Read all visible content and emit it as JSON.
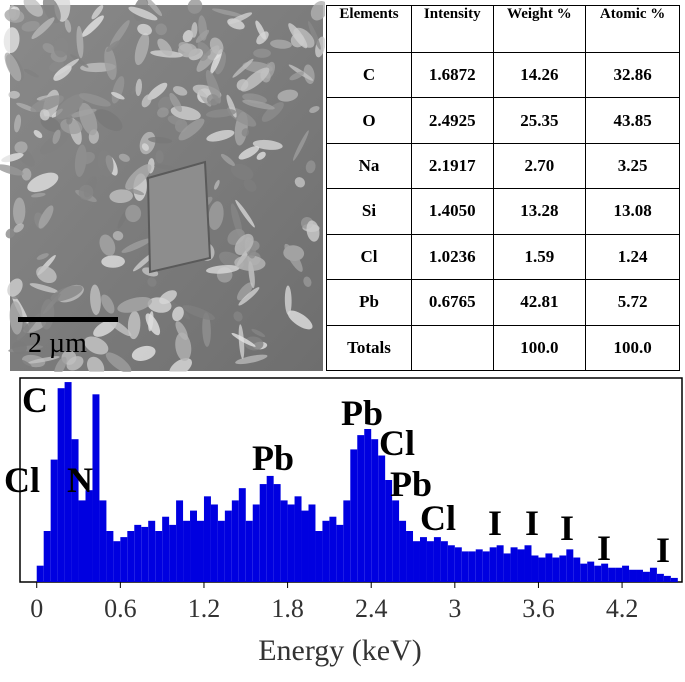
{
  "image": {
    "scale_label": "2 µm"
  },
  "table": {
    "header": [
      "Elements",
      "Intensity",
      "Weight %",
      "Atomic %"
    ],
    "rows": [
      [
        "C",
        "1.6872",
        "14.26",
        "32.86"
      ],
      [
        "O",
        "2.4925",
        "25.35",
        "43.85"
      ],
      [
        "Na",
        "2.1917",
        "2.70",
        "3.25"
      ],
      [
        "Si",
        "1.4050",
        "13.28",
        "13.08"
      ],
      [
        "Cl",
        "1.0236",
        "1.59",
        "1.24"
      ],
      [
        "Pb",
        "0.6765",
        "42.81",
        "5.72"
      ],
      [
        "Totals",
        "",
        "100.0",
        "100.0"
      ]
    ]
  },
  "chart_data": {
    "type": "histogram",
    "x_label": "Energy (keV)",
    "color": "#0000e0",
    "bins": [
      0,
      0.05,
      0.1,
      0.15,
      0.2,
      0.25,
      0.3,
      0.35,
      0.4,
      0.45,
      0.5,
      0.55,
      0.6,
      0.65,
      0.7,
      0.75,
      0.8,
      0.85,
      0.9,
      0.95,
      1,
      1.05,
      1.1,
      1.15,
      1.2,
      1.25,
      1.3,
      1.35,
      1.4,
      1.45,
      1.5,
      1.55,
      1.6,
      1.65,
      1.7,
      1.75,
      1.8,
      1.85,
      1.9,
      1.95,
      2,
      2.05,
      2.1,
      2.15,
      2.2,
      2.25,
      2.3,
      2.35,
      2.4,
      2.45,
      2.5,
      2.55,
      2.6,
      2.65,
      2.7,
      2.75,
      2.8,
      2.85,
      2.9,
      2.95,
      3,
      3.05,
      3.1,
      3.15,
      3.2,
      3.25,
      3.3,
      3.35,
      3.4,
      3.45,
      3.5,
      3.55,
      3.6,
      3.65,
      3.7,
      3.75,
      3.8,
      3.85,
      3.9,
      3.95,
      4,
      4.05,
      4.1,
      4.15,
      4.2,
      4.25,
      4.3,
      4.35,
      4.4,
      4.45,
      4.5,
      4.55,
      4.6
    ],
    "values": [
      8,
      25,
      60,
      95,
      98,
      70,
      40,
      45,
      92,
      40,
      25,
      20,
      22,
      25,
      28,
      27,
      30,
      25,
      32,
      28,
      40,
      30,
      35,
      30,
      42,
      38,
      30,
      35,
      40,
      46,
      30,
      38,
      48,
      52,
      48,
      40,
      38,
      42,
      35,
      38,
      25,
      30,
      32,
      28,
      40,
      65,
      72,
      75,
      70,
      62,
      50,
      40,
      30,
      25,
      20,
      22,
      20,
      22,
      20,
      18,
      17,
      15,
      15,
      16,
      15,
      17,
      18,
      14,
      17,
      16,
      18,
      13,
      12,
      14,
      12,
      13,
      16,
      12,
      9,
      10,
      8,
      9,
      7,
      7,
      8,
      6,
      6,
      5,
      7,
      4,
      3,
      2
    ],
    "xlim": [
      -0.12,
      4.63
    ],
    "ylim": [
      0,
      100
    ],
    "xticks": [
      0,
      0.6,
      1.2,
      1.8,
      2.4,
      3,
      3.6,
      4.2
    ],
    "annotations": [
      "C",
      "Cl",
      "N",
      "Pb",
      "Pb",
      "Cl",
      "Pb",
      "Cl",
      "I",
      "I",
      "I",
      "I",
      "I"
    ]
  }
}
